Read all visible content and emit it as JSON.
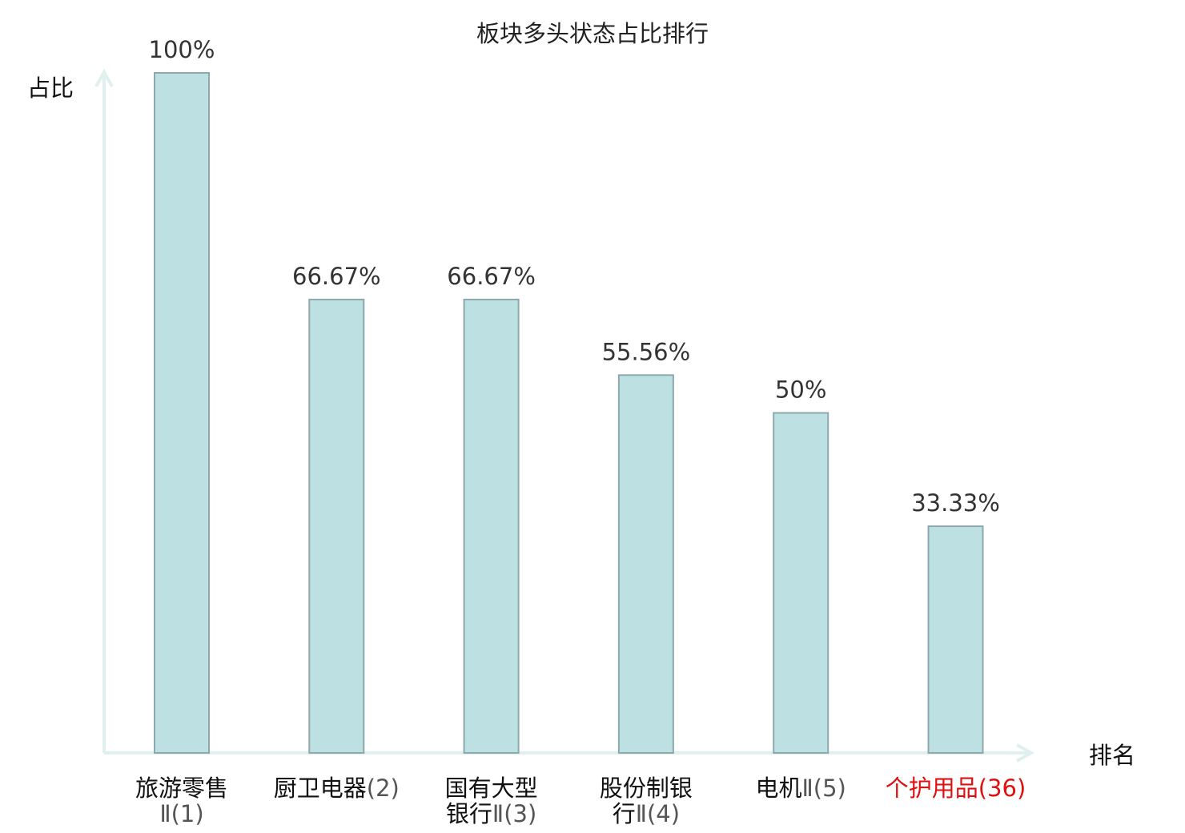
{
  "chart_data": {
    "type": "bar",
    "title": "板块多头状态占比排行",
    "ylabel": "占比",
    "xlabel": "排名",
    "ylim": [
      0,
      100
    ],
    "grid": false,
    "bar_color": "#bde0e3",
    "axis_color": "#dff0ee",
    "highlight_color": "#e01010",
    "categories": [
      {
        "lines": [
          "旅游零售",
          "Ⅱ(1)"
        ],
        "highlight": false
      },
      {
        "lines": [
          "厨卫电器(2)"
        ],
        "highlight": false
      },
      {
        "lines": [
          "国有大型",
          "银行Ⅱ(3)"
        ],
        "highlight": false
      },
      {
        "lines": [
          "股份制银",
          "行Ⅱ(4)"
        ],
        "highlight": false
      },
      {
        "lines": [
          "电机Ⅱ(5)"
        ],
        "highlight": false
      },
      {
        "lines": [
          "个护用品(36)"
        ],
        "highlight": true
      }
    ],
    "values": [
      100,
      66.67,
      66.67,
      55.56,
      50,
      33.33
    ],
    "value_labels": [
      "100%",
      "66.67%",
      "66.67%",
      "55.56%",
      "50%",
      "33.33%"
    ]
  }
}
